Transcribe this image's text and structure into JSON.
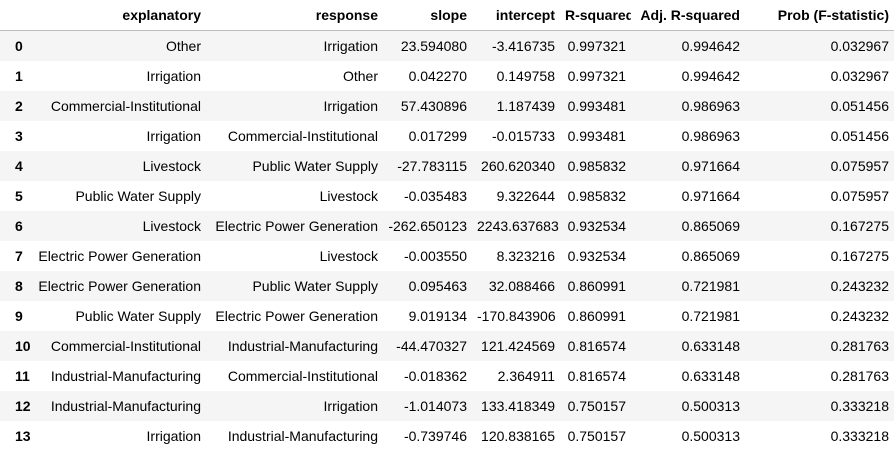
{
  "table": {
    "columns": [
      "",
      "explanatory",
      "response",
      "slope",
      "intercept",
      "R-squared",
      "Adj. R-squared",
      "Prob (F-statistic)"
    ],
    "rows": [
      {
        "index": "0",
        "explanatory": "Other",
        "response": "Irrigation",
        "slope": "23.594080",
        "intercept": "-3.416735",
        "r_squared": "0.997321",
        "adj_r_squared": "0.994642",
        "prob_f": "0.032967"
      },
      {
        "index": "1",
        "explanatory": "Irrigation",
        "response": "Other",
        "slope": "0.042270",
        "intercept": "0.149758",
        "r_squared": "0.997321",
        "adj_r_squared": "0.994642",
        "prob_f": "0.032967"
      },
      {
        "index": "2",
        "explanatory": "Commercial-Institutional",
        "response": "Irrigation",
        "slope": "57.430896",
        "intercept": "1.187439",
        "r_squared": "0.993481",
        "adj_r_squared": "0.986963",
        "prob_f": "0.051456"
      },
      {
        "index": "3",
        "explanatory": "Irrigation",
        "response": "Commercial-Institutional",
        "slope": "0.017299",
        "intercept": "-0.015733",
        "r_squared": "0.993481",
        "adj_r_squared": "0.986963",
        "prob_f": "0.051456"
      },
      {
        "index": "4",
        "explanatory": "Livestock",
        "response": "Public Water Supply",
        "slope": "-27.783115",
        "intercept": "260.620340",
        "r_squared": "0.985832",
        "adj_r_squared": "0.971664",
        "prob_f": "0.075957"
      },
      {
        "index": "5",
        "explanatory": "Public Water Supply",
        "response": "Livestock",
        "slope": "-0.035483",
        "intercept": "9.322644",
        "r_squared": "0.985832",
        "adj_r_squared": "0.971664",
        "prob_f": "0.075957"
      },
      {
        "index": "6",
        "explanatory": "Livestock",
        "response": "Electric Power Generation",
        "slope": "-262.650123",
        "intercept": "2243.637683",
        "r_squared": "0.932534",
        "adj_r_squared": "0.865069",
        "prob_f": "0.167275"
      },
      {
        "index": "7",
        "explanatory": "Electric Power Generation",
        "response": "Livestock",
        "slope": "-0.003550",
        "intercept": "8.323216",
        "r_squared": "0.932534",
        "adj_r_squared": "0.865069",
        "prob_f": "0.167275"
      },
      {
        "index": "8",
        "explanatory": "Electric Power Generation",
        "response": "Public Water Supply",
        "slope": "0.095463",
        "intercept": "32.088466",
        "r_squared": "0.860991",
        "adj_r_squared": "0.721981",
        "prob_f": "0.243232"
      },
      {
        "index": "9",
        "explanatory": "Public Water Supply",
        "response": "Electric Power Generation",
        "slope": "9.019134",
        "intercept": "-170.843906",
        "r_squared": "0.860991",
        "adj_r_squared": "0.721981",
        "prob_f": "0.243232"
      },
      {
        "index": "10",
        "explanatory": "Commercial-Institutional",
        "response": "Industrial-Manufacturing",
        "slope": "-44.470327",
        "intercept": "121.424569",
        "r_squared": "0.816574",
        "adj_r_squared": "0.633148",
        "prob_f": "0.281763"
      },
      {
        "index": "11",
        "explanatory": "Industrial-Manufacturing",
        "response": "Commercial-Institutional",
        "slope": "-0.018362",
        "intercept": "2.364911",
        "r_squared": "0.816574",
        "adj_r_squared": "0.633148",
        "prob_f": "0.281763"
      },
      {
        "index": "12",
        "explanatory": "Industrial-Manufacturing",
        "response": "Irrigation",
        "slope": "-1.014073",
        "intercept": "133.418349",
        "r_squared": "0.750157",
        "adj_r_squared": "0.500313",
        "prob_f": "0.333218"
      },
      {
        "index": "13",
        "explanatory": "Irrigation",
        "response": "Industrial-Manufacturing",
        "slope": "-0.739746",
        "intercept": "120.838165",
        "r_squared": "0.750157",
        "adj_r_squared": "0.500313",
        "prob_f": "0.333218"
      }
    ]
  }
}
